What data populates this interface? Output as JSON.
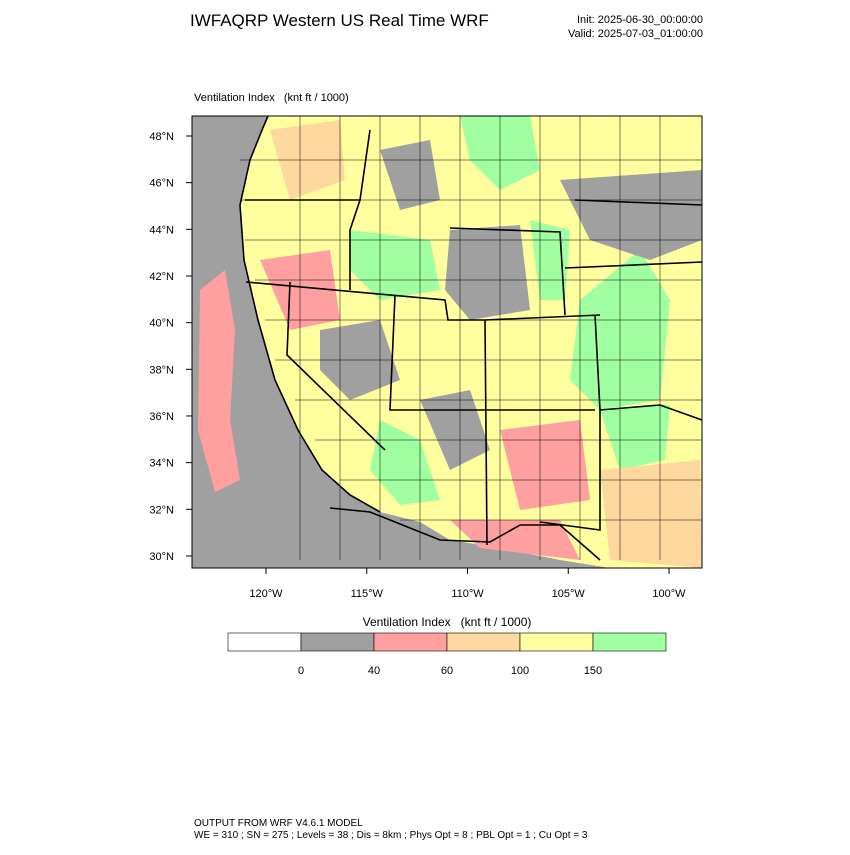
{
  "header": {
    "title": "IWFAQRP Western US Real Time WRF",
    "init": "Init: 2025-06-30_00:00:00",
    "valid": "Valid: 2025-07-03_01:00:00"
  },
  "map": {
    "label": "Ventilation Index   (knt ft / 1000)",
    "lat_ticks": [
      {
        "value": 48,
        "label": "48°N"
      },
      {
        "value": 46,
        "label": "46°N"
      },
      {
        "value": 44,
        "label": "44°N"
      },
      {
        "value": 42,
        "label": "42°N"
      },
      {
        "value": 40,
        "label": "40°N"
      },
      {
        "value": 38,
        "label": "38°N"
      },
      {
        "value": 36,
        "label": "36°N"
      },
      {
        "value": 34,
        "label": "34°N"
      },
      {
        "value": 32,
        "label": "32°N"
      },
      {
        "value": 30,
        "label": "30°N"
      }
    ],
    "lon_ticks": [
      {
        "value": -120,
        "label": "120°W"
      },
      {
        "value": -115,
        "label": "115°W"
      },
      {
        "value": -110,
        "label": "110°W"
      },
      {
        "value": -105,
        "label": "105°W"
      },
      {
        "value": -100,
        "label": "100°W"
      }
    ]
  },
  "colorbar": {
    "title": "Ventilation Index   (knt ft / 1000)",
    "colors": [
      "#ffffff",
      "#a0a0a0",
      "#ffa0a0",
      "#ffd8a0",
      "#ffffa0",
      "#a0ffa0"
    ],
    "levels": [
      0,
      40,
      60,
      100,
      150
    ]
  },
  "footer": {
    "line1": "OUTPUT FROM WRF V4.6.1 MODEL",
    "line2": "WE = 310 ; SN = 275 ; Levels = 38 ; Dis = 8km ; Phys Opt = 8 ; PBL Opt = 1 ; Cu Opt = 3"
  }
}
